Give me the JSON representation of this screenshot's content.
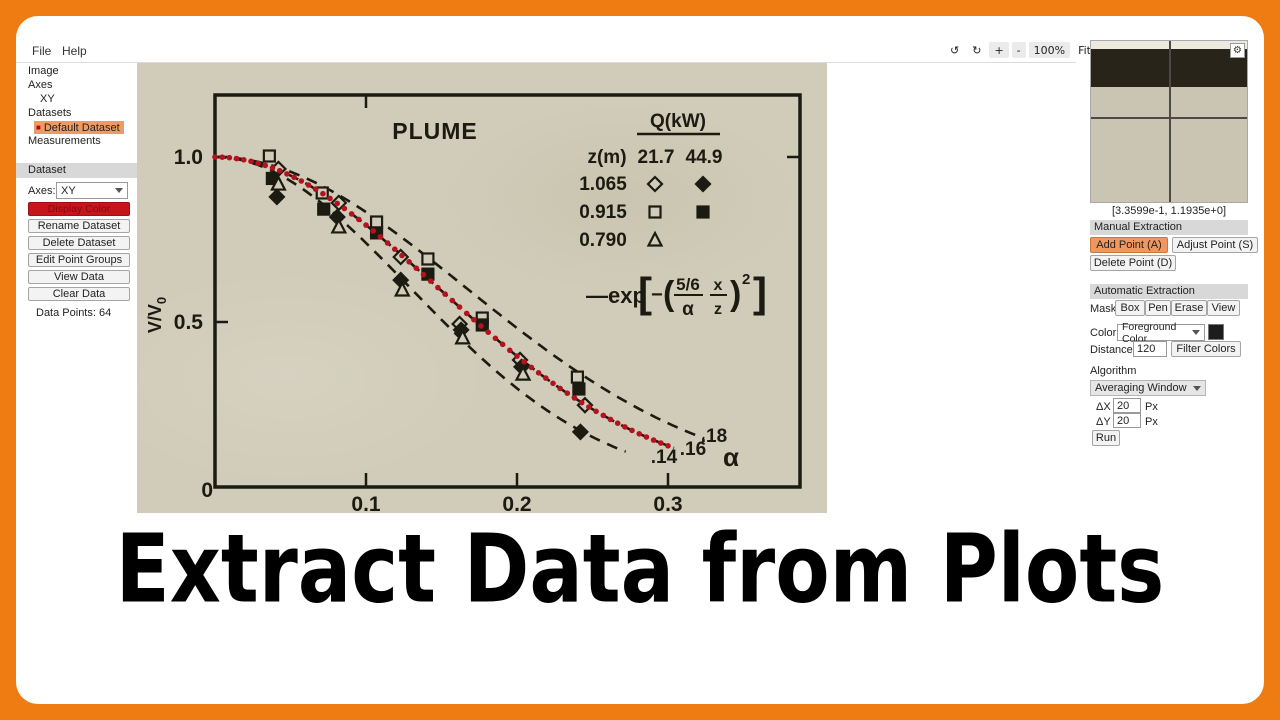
{
  "menu": {
    "file": "File",
    "help": "Help"
  },
  "toolbar": {
    "rotate_ccw": "↺",
    "rotate_cw": "↻",
    "zoom_in": "+",
    "zoom_out": "-",
    "zoom_level": "100%",
    "fit": "Fit",
    "crosshair": "⊕"
  },
  "sidebar": {
    "tree": [
      {
        "label": "Image"
      },
      {
        "label": "Axes"
      },
      {
        "label": "XY"
      },
      {
        "label": "Datasets"
      },
      {
        "label": "Default Dataset",
        "selected": true,
        "bullet": "■"
      },
      {
        "label": "Measurements"
      }
    ],
    "dataset_panel": {
      "header": "Dataset",
      "axes_label": "Axes:",
      "axes_value": "XY",
      "display_color": "Display Color",
      "buttons": [
        "Rename Dataset",
        "Delete Dataset",
        "Edit Point Groups",
        "View Data",
        "Clear Data"
      ],
      "data_points_label": "Data Points: 64"
    }
  },
  "right_panel": {
    "gear": "⚙",
    "coords": "[3.3599e-1, 1.1935e+0]",
    "manual": {
      "header": "Manual Extraction",
      "add": "Add Point (A)",
      "adjust": "Adjust Point (S)",
      "delete": "Delete Point (D)"
    },
    "auto": {
      "header": "Automatic Extraction",
      "mask_label": "Mask",
      "mask_buttons": [
        "Box",
        "Pen",
        "Erase",
        "View"
      ],
      "color_label": "Color",
      "color_value": "Foreground Color",
      "swatch_color": "#1c1c1c",
      "distance_label": "Distance",
      "distance_value": "120",
      "filter_colors": "Filter Colors",
      "algorithm_label": "Algorithm",
      "algorithm_value": "Averaging Window",
      "dx_label": "ΔX",
      "dx_value": "20",
      "dx_unit": "Px",
      "dy_label": "ΔY",
      "dy_value": "20",
      "dy_unit": "Px",
      "run": "Run"
    }
  },
  "caption": "Extract Data from Plots",
  "chart_data": {
    "type": "scatter",
    "title": "PLUME",
    "ylabel": {
      "main": "V/V",
      "sub": "0"
    },
    "origin_label": "0",
    "x_ticks": {
      "labels": [
        "0.1",
        "0.2",
        "0.3"
      ],
      "values": [
        0.1,
        0.2,
        0.3
      ]
    },
    "y_ticks": {
      "labels": [
        "1.0",
        "0.5"
      ],
      "values": [
        1.0,
        0.5
      ]
    },
    "xlim": [
      0,
      0.387
    ],
    "ylim": [
      0,
      1.19
    ],
    "ink_color": "#1b1b12",
    "paper_color": "#d1ccb9",
    "curves": {
      "alphas": [
        0.14,
        0.16,
        0.18
      ],
      "labels": [
        ".14",
        ".16",
        ".18"
      ],
      "x_end": [
        0.272,
        0.305,
        0.325
      ],
      "alpha_symbol": "α",
      "model": "v/v0 = exp[-((5/6)(x/(alpha z)))^2]"
    },
    "equation": {
      "prefix": "—exp",
      "lbracket": "[",
      "minus": "−",
      "lparen": "(",
      "frac1_num": "5/6",
      "frac1_den": "α",
      "frac2_num": "x",
      "frac2_den": "z",
      "rparen": ")",
      "exponent": "2",
      "rbracket": "]"
    },
    "legend": {
      "header": "Q(kW)",
      "row_header": "z(m)",
      "columns": [
        "21.7",
        "44.9"
      ],
      "rows": [
        {
          "z": "1.065",
          "markers": [
            "open-diamond",
            "filled-diamond"
          ]
        },
        {
          "z": "0.915",
          "markers": [
            "open-square",
            "filled-square"
          ]
        },
        {
          "z": "0.790",
          "markers": [
            "open-triangle",
            null
          ]
        }
      ]
    },
    "series": [
      {
        "name": "z=1.065 Q=21.7",
        "marker": "open-diamond",
        "points": [
          [
            0.042,
            0.964
          ],
          [
            0.082,
            0.861
          ],
          [
            0.123,
            0.697
          ],
          [
            0.162,
            0.494
          ],
          [
            0.202,
            0.385
          ],
          [
            0.245,
            0.248
          ]
        ]
      },
      {
        "name": "z=1.065 Q=44.9",
        "marker": "filled-diamond",
        "points": [
          [
            0.041,
            0.879
          ],
          [
            0.081,
            0.818
          ],
          [
            0.123,
            0.627
          ],
          [
            0.163,
            0.476
          ],
          [
            0.203,
            0.364
          ],
          [
            0.242,
            0.167
          ]
        ]
      },
      {
        "name": "z=0.915 Q=21.7",
        "marker": "open-square",
        "points": [
          [
            0.036,
            1.003
          ],
          [
            0.071,
            0.891
          ],
          [
            0.107,
            0.803
          ],
          [
            0.141,
            0.691
          ],
          [
            0.177,
            0.512
          ],
          [
            0.24,
            0.333
          ]
        ]
      },
      {
        "name": "z=0.915 Q=44.9",
        "marker": "filled-square",
        "points": [
          [
            0.038,
            0.935
          ],
          [
            0.072,
            0.842
          ],
          [
            0.107,
            0.77
          ],
          [
            0.141,
            0.645
          ],
          [
            0.177,
            0.491
          ],
          [
            0.241,
            0.297
          ]
        ]
      },
      {
        "name": "z=0.790 Q=21.7",
        "marker": "open-triangle",
        "points": [
          [
            0.042,
            0.918
          ],
          [
            0.082,
            0.788
          ],
          [
            0.124,
            0.597
          ],
          [
            0.164,
            0.452
          ],
          [
            0.204,
            0.342
          ]
        ]
      }
    ],
    "extracted_points": {
      "count": 64,
      "color": "#b5121e",
      "x_start": 0,
      "x_end": 0.3,
      "follows_alpha": 0.16
    }
  }
}
